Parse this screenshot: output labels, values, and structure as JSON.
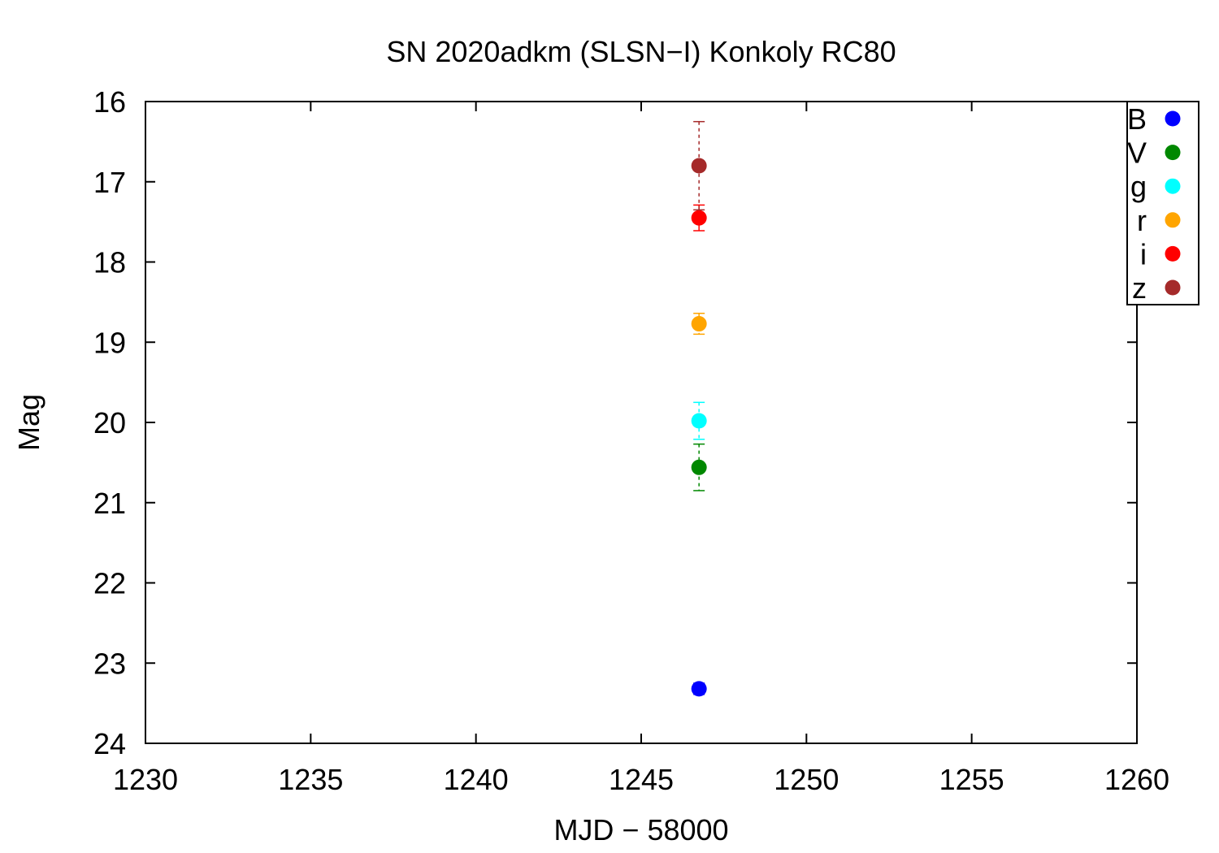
{
  "chart_data": {
    "type": "scatter",
    "title": "SN 2020adkm (SLSN−I) Konkoly RC80",
    "xlabel": "MJD − 58000",
    "ylabel": "Mag",
    "xlim": [
      1230,
      1260
    ],
    "ylim": [
      16,
      24
    ],
    "y_inverted": true,
    "x_ticks": [
      "1230",
      "1235",
      "1240",
      "1245",
      "1250",
      "1255",
      "1260"
    ],
    "y_ticks": [
      "16",
      "17",
      "18",
      "19",
      "20",
      "21",
      "22",
      "23",
      "24"
    ],
    "legend_position": "top-right",
    "grid": false,
    "series": [
      {
        "name": "B",
        "color": "#0000ff",
        "points": [
          {
            "x": 1246.75,
            "y": 23.32,
            "err": 0.07
          }
        ]
      },
      {
        "name": "V",
        "color": "#008800",
        "points": [
          {
            "x": 1246.75,
            "y": 20.56,
            "err": 0.29
          }
        ]
      },
      {
        "name": "g",
        "color": "#00ffff",
        "points": [
          {
            "x": 1246.75,
            "y": 19.98,
            "err": 0.23
          }
        ]
      },
      {
        "name": "r",
        "color": "#ffa500",
        "points": [
          {
            "x": 1246.75,
            "y": 18.77,
            "err": 0.13
          }
        ]
      },
      {
        "name": "i",
        "color": "#ff0000",
        "points": [
          {
            "x": 1246.75,
            "y": 17.45,
            "err": 0.16
          }
        ]
      },
      {
        "name": "z",
        "color": "#a52a2a",
        "points": [
          {
            "x": 1246.75,
            "y": 16.8,
            "err": 0.55
          }
        ]
      }
    ]
  }
}
